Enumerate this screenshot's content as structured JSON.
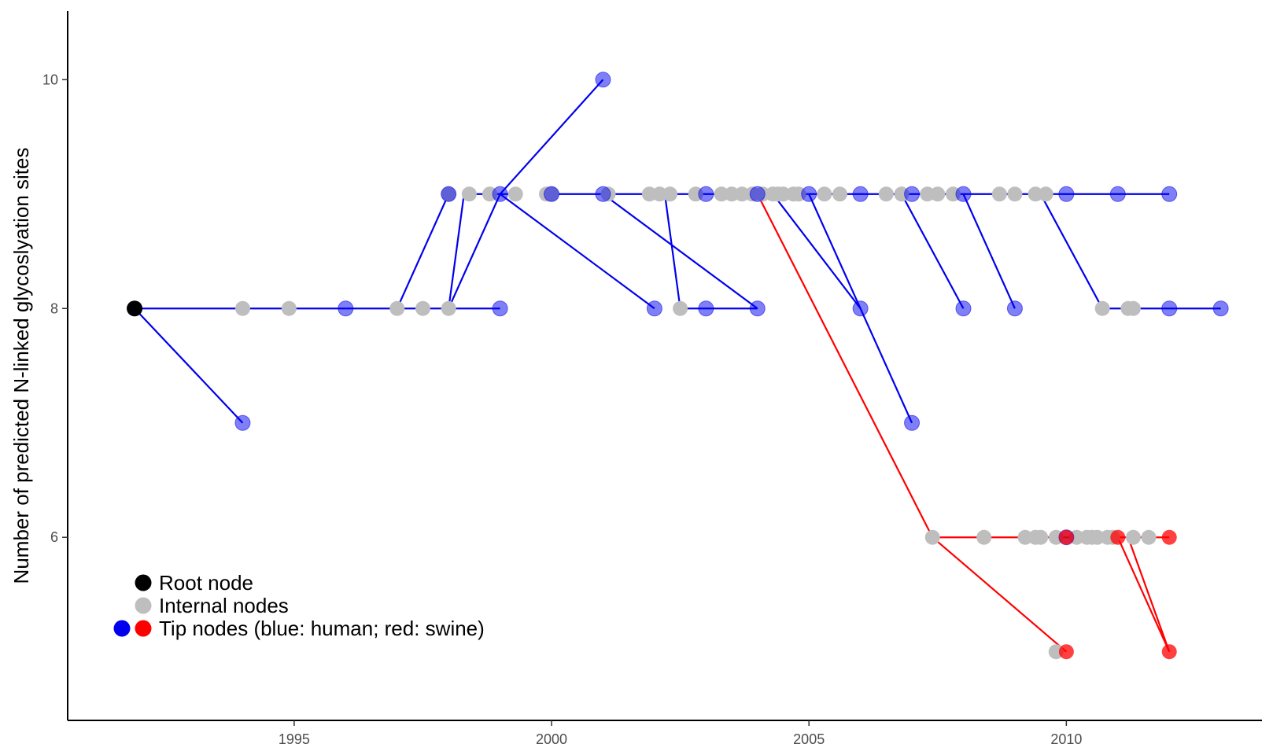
{
  "chart_data": {
    "type": "scatter",
    "title": "",
    "xlabel": "",
    "ylabel": "Number of predicted N-linked glycoslyation sites",
    "xlim": [
      1990.6,
      2013.8
    ],
    "ylim": [
      4.4,
      10.6
    ],
    "x_ticks": [
      1995,
      2000,
      2005,
      2010
    ],
    "y_ticks": [
      6,
      8,
      10
    ],
    "grid": false,
    "legend_position": "bottom-left",
    "colors": {
      "root": "#000000",
      "internal": "#bebebe",
      "human": "#0000ee",
      "swine": "#ff0000"
    },
    "legend": [
      {
        "label": "Root node",
        "colors": [
          "#000000"
        ]
      },
      {
        "label": "Internal nodes",
        "colors": [
          "#bebebe"
        ]
      },
      {
        "label": "Tip nodes (blue: human; red: swine)",
        "colors": [
          "#0000ee",
          "#ff0000"
        ]
      }
    ],
    "human_edges": [
      [
        [
          1991.9,
          8
        ],
        [
          1994.0,
          8
        ]
      ],
      [
        [
          1994.0,
          8
        ],
        [
          1994.9,
          8
        ]
      ],
      [
        [
          1994.9,
          8
        ],
        [
          1996.0,
          8
        ]
      ],
      [
        [
          1996.0,
          8
        ],
        [
          1997.0,
          8
        ]
      ],
      [
        [
          1997.0,
          8
        ],
        [
          1997.5,
          8
        ]
      ],
      [
        [
          1997.5,
          8
        ],
        [
          1998.0,
          8
        ]
      ],
      [
        [
          1998.0,
          8
        ],
        [
          1999.0,
          8
        ]
      ],
      [
        [
          1991.9,
          8
        ],
        [
          1994.0,
          7
        ]
      ],
      [
        [
          1997.0,
          8
        ],
        [
          1998.0,
          9
        ]
      ],
      [
        [
          1998.0,
          8
        ],
        [
          1998.3,
          9
        ]
      ],
      [
        [
          1998.0,
          8
        ],
        [
          1999.0,
          9
        ]
      ],
      [
        [
          1998.3,
          9
        ],
        [
          1999.3,
          9
        ]
      ],
      [
        [
          1999.0,
          9
        ],
        [
          2001.0,
          10
        ]
      ],
      [
        [
          1999.0,
          9
        ],
        [
          2002.0,
          8
        ]
      ],
      [
        [
          1999.8,
          9
        ],
        [
          2012.0,
          9
        ]
      ],
      [
        [
          2001.0,
          9
        ],
        [
          2004.0,
          8
        ]
      ],
      [
        [
          2002.2,
          9
        ],
        [
          2002.5,
          8
        ]
      ],
      [
        [
          2002.5,
          8
        ],
        [
          2004.0,
          8
        ]
      ],
      [
        [
          2004.3,
          9
        ],
        [
          2006.0,
          8
        ]
      ],
      [
        [
          2005.0,
          9
        ],
        [
          2007.0,
          7
        ]
      ],
      [
        [
          2006.8,
          9
        ],
        [
          2008.0,
          8
        ]
      ],
      [
        [
          2008.0,
          9
        ],
        [
          2009.0,
          8
        ]
      ],
      [
        [
          2009.5,
          9
        ],
        [
          2010.7,
          8
        ]
      ],
      [
        [
          2010.7,
          8
        ],
        [
          2013.0,
          8
        ]
      ]
    ],
    "swine_edges": [
      [
        [
          2004.0,
          9
        ],
        [
          2007.4,
          6
        ]
      ],
      [
        [
          2007.4,
          6
        ],
        [
          2012.0,
          6
        ]
      ],
      [
        [
          2007.4,
          6
        ],
        [
          2010.0,
          5
        ]
      ],
      [
        [
          2011.0,
          6
        ],
        [
          2012.0,
          5
        ]
      ],
      [
        [
          2011.2,
          6
        ],
        [
          2012.0,
          5
        ]
      ]
    ],
    "root_node": {
      "x": 1991.9,
      "y": 8
    },
    "internal_nodes": [
      {
        "x": 1994.0,
        "y": 8
      },
      {
        "x": 1994.9,
        "y": 8
      },
      {
        "x": 1997.0,
        "y": 8
      },
      {
        "x": 1997.5,
        "y": 8
      },
      {
        "x": 1998.0,
        "y": 8
      },
      {
        "x": 1998.0,
        "y": 9
      },
      {
        "x": 1998.4,
        "y": 9
      },
      {
        "x": 1998.8,
        "y": 9
      },
      {
        "x": 1999.3,
        "y": 9
      },
      {
        "x": 1999.9,
        "y": 9
      },
      {
        "x": 2000.0,
        "y": 9
      },
      {
        "x": 2001.1,
        "y": 9
      },
      {
        "x": 2001.9,
        "y": 9
      },
      {
        "x": 2002.1,
        "y": 9
      },
      {
        "x": 2002.3,
        "y": 9
      },
      {
        "x": 2002.8,
        "y": 9
      },
      {
        "x": 2003.3,
        "y": 9
      },
      {
        "x": 2003.5,
        "y": 9
      },
      {
        "x": 2003.7,
        "y": 9
      },
      {
        "x": 2003.9,
        "y": 9
      },
      {
        "x": 2004.1,
        "y": 9
      },
      {
        "x": 2004.3,
        "y": 9
      },
      {
        "x": 2004.4,
        "y": 9
      },
      {
        "x": 2004.5,
        "y": 9
      },
      {
        "x": 2004.7,
        "y": 9
      },
      {
        "x": 2004.8,
        "y": 9
      },
      {
        "x": 2005.3,
        "y": 9
      },
      {
        "x": 2005.6,
        "y": 9
      },
      {
        "x": 2006.5,
        "y": 9
      },
      {
        "x": 2006.8,
        "y": 9
      },
      {
        "x": 2007.3,
        "y": 9
      },
      {
        "x": 2007.5,
        "y": 9
      },
      {
        "x": 2007.8,
        "y": 9
      },
      {
        "x": 2008.7,
        "y": 9
      },
      {
        "x": 2009.0,
        "y": 9
      },
      {
        "x": 2009.4,
        "y": 9
      },
      {
        "x": 2009.6,
        "y": 9
      },
      {
        "x": 2002.5,
        "y": 8
      },
      {
        "x": 2010.7,
        "y": 8
      },
      {
        "x": 2011.2,
        "y": 8
      },
      {
        "x": 2011.3,
        "y": 8
      },
      {
        "x": 2007.4,
        "y": 6
      },
      {
        "x": 2008.4,
        "y": 6
      },
      {
        "x": 2009.2,
        "y": 6
      },
      {
        "x": 2009.4,
        "y": 6
      },
      {
        "x": 2009.5,
        "y": 6
      },
      {
        "x": 2009.8,
        "y": 6
      },
      {
        "x": 2010.2,
        "y": 6
      },
      {
        "x": 2010.4,
        "y": 6
      },
      {
        "x": 2010.5,
        "y": 6
      },
      {
        "x": 2010.6,
        "y": 6
      },
      {
        "x": 2010.8,
        "y": 6
      },
      {
        "x": 2010.9,
        "y": 6
      },
      {
        "x": 2011.3,
        "y": 6
      },
      {
        "x": 2011.6,
        "y": 6
      },
      {
        "x": 2009.8,
        "y": 5
      }
    ],
    "human_tips": [
      {
        "x": 1994.0,
        "y": 7
      },
      {
        "x": 1996.0,
        "y": 8
      },
      {
        "x": 1998.0,
        "y": 9
      },
      {
        "x": 1999.0,
        "y": 9
      },
      {
        "x": 1999.0,
        "y": 8
      },
      {
        "x": 2000.0,
        "y": 9
      },
      {
        "x": 2001.0,
        "y": 10
      },
      {
        "x": 2001.0,
        "y": 9
      },
      {
        "x": 2002.0,
        "y": 8
      },
      {
        "x": 2003.0,
        "y": 9
      },
      {
        "x": 2003.0,
        "y": 8
      },
      {
        "x": 2004.0,
        "y": 9
      },
      {
        "x": 2004.0,
        "y": 8
      },
      {
        "x": 2005.0,
        "y": 9
      },
      {
        "x": 2006.0,
        "y": 9
      },
      {
        "x": 2006.0,
        "y": 8
      },
      {
        "x": 2007.0,
        "y": 9
      },
      {
        "x": 2007.0,
        "y": 7
      },
      {
        "x": 2008.0,
        "y": 9
      },
      {
        "x": 2008.0,
        "y": 8
      },
      {
        "x": 2009.0,
        "y": 8
      },
      {
        "x": 2010.0,
        "y": 9
      },
      {
        "x": 2011.0,
        "y": 9
      },
      {
        "x": 2012.0,
        "y": 9
      },
      {
        "x": 2012.0,
        "y": 8
      },
      {
        "x": 2013.0,
        "y": 8
      },
      {
        "x": 2010.0,
        "y": 6
      }
    ],
    "swine_tips": [
      {
        "x": 2010.0,
        "y": 6
      },
      {
        "x": 2011.0,
        "y": 6
      },
      {
        "x": 2012.0,
        "y": 6
      },
      {
        "x": 2012.0,
        "y": 5
      },
      {
        "x": 2010.0,
        "y": 5
      }
    ]
  }
}
